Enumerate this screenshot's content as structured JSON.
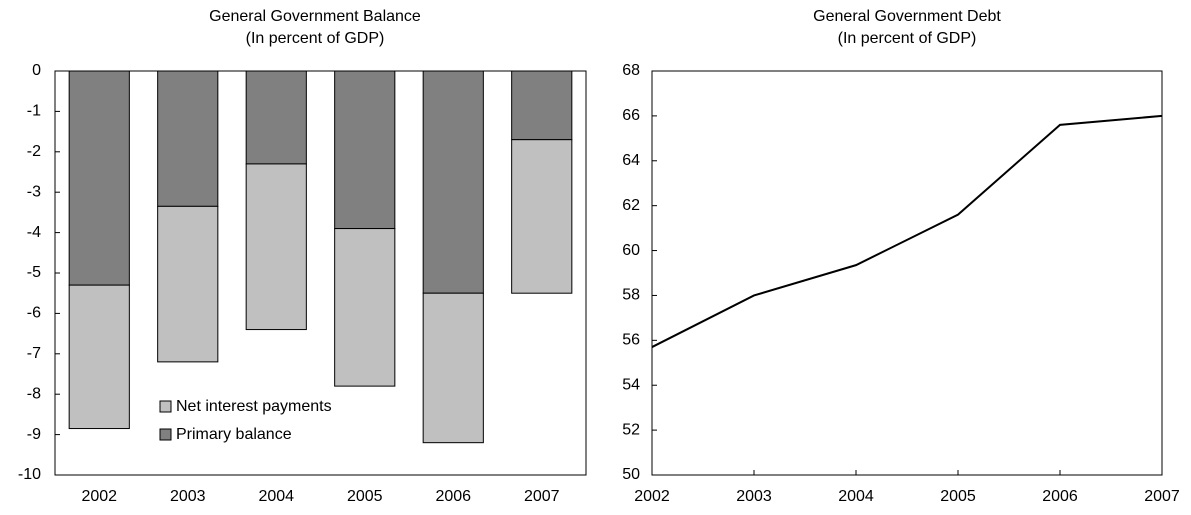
{
  "chart_data": [
    {
      "type": "bar",
      "stacked": true,
      "title": "General Government Balance",
      "subtitle": "(In percent of GDP)",
      "categories": [
        "2002",
        "2003",
        "2004",
        "2005",
        "2006",
        "2007"
      ],
      "series": [
        {
          "name": "Primary balance",
          "color": "#808080",
          "values": [
            -5.3,
            -3.35,
            -2.3,
            -3.9,
            -5.5,
            -1.7
          ]
        },
        {
          "name": "Net interest payments",
          "color": "#c0c0c0",
          "values": [
            -3.55,
            -3.85,
            -4.1,
            -3.9,
            -3.7,
            -3.8
          ]
        }
      ],
      "ylim": [
        -10,
        0
      ],
      "yticks": [
        -10,
        -9,
        -8,
        -7,
        -6,
        -5,
        -4,
        -3,
        -2,
        -1,
        0
      ]
    },
    {
      "type": "line",
      "title": "General Government Debt",
      "subtitle": "(In percent of GDP)",
      "x": [
        2002,
        2003,
        2004,
        2005,
        2006,
        2007
      ],
      "series": [
        {
          "color": "#000000",
          "values": [
            55.7,
            58.0,
            59.35,
            61.6,
            65.6,
            66.0
          ]
        }
      ],
      "xlim": [
        2002,
        2007
      ],
      "xticks": [
        2002,
        2003,
        2004,
        2005,
        2006,
        2007
      ],
      "ylim": [
        50,
        68
      ],
      "yticks": [
        50,
        52,
        54,
        56,
        58,
        60,
        62,
        64,
        66,
        68
      ]
    }
  ]
}
